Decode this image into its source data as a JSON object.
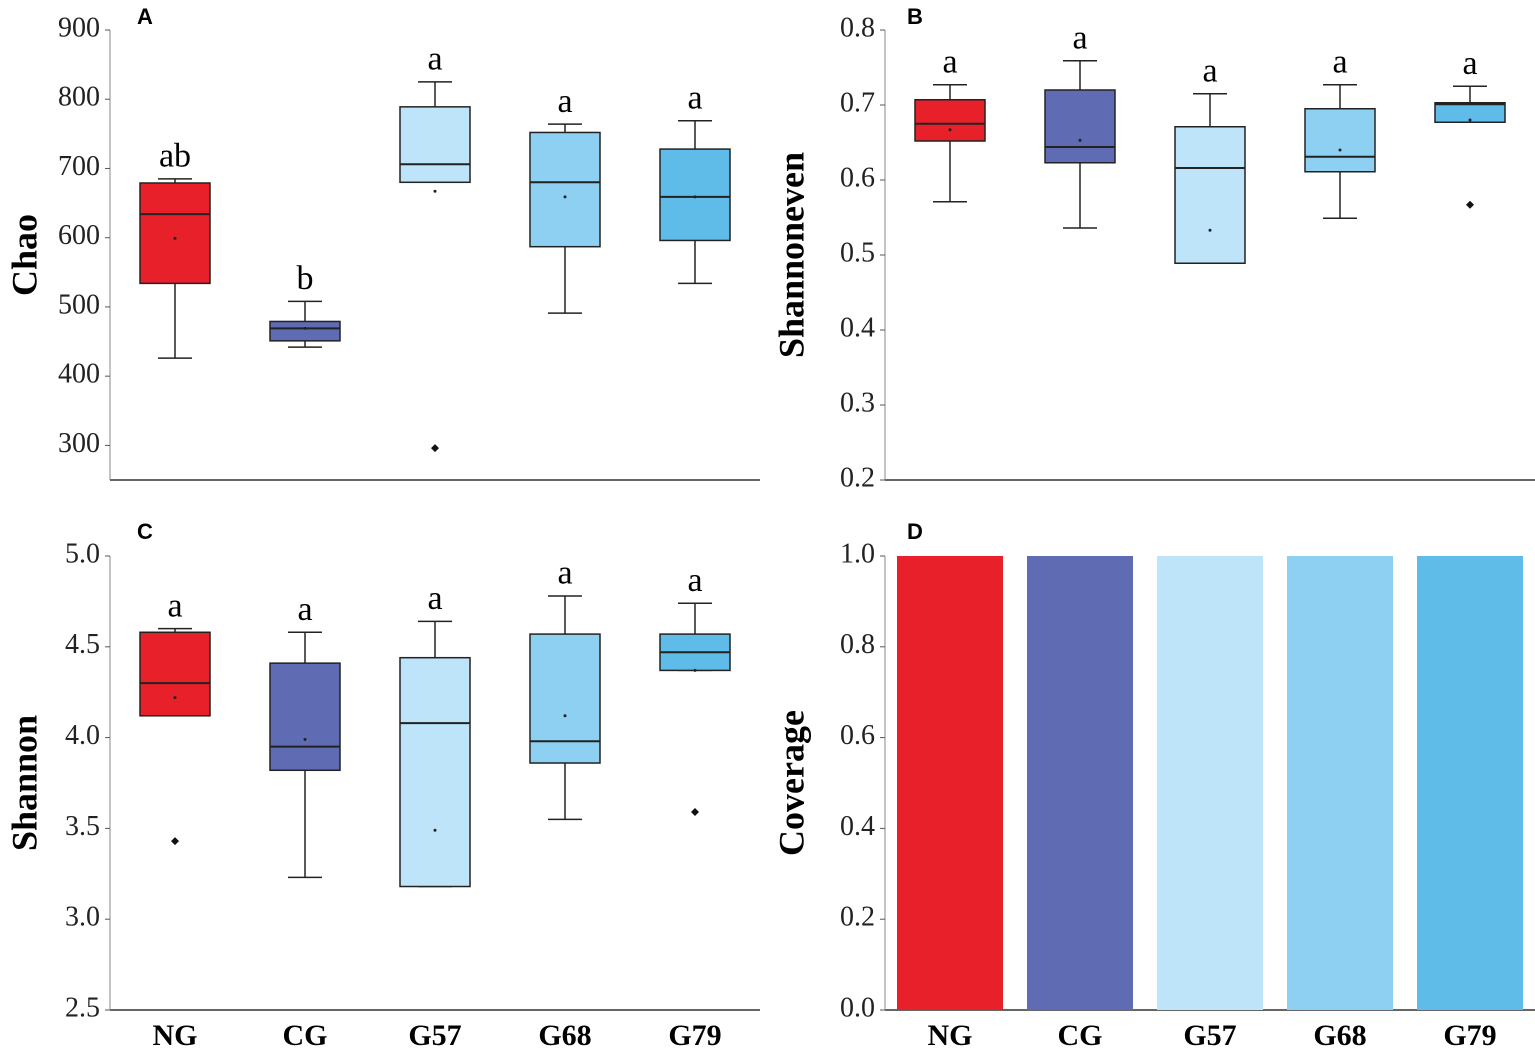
{
  "chart_data": [
    {
      "type": "box",
      "panel_label": "A",
      "y_label": "Chao",
      "ylim": [
        250,
        900
      ],
      "yticks": [
        300,
        400,
        500,
        600,
        700,
        800,
        900
      ],
      "boxes": [
        {
          "color": "#e8202a",
          "whisker_low": 426,
          "q1": 534,
          "median": 634,
          "q3": 679,
          "whisker_high": 685,
          "mean": 599,
          "letter": "ab"
        },
        {
          "color": "#5f6cb3",
          "whisker_low": 442,
          "q1": 451,
          "median": 469,
          "q3": 479,
          "whisker_high": 508,
          "mean": 469,
          "letter": "b"
        },
        {
          "color": "#bde4f8",
          "whisker_low": 680,
          "q1": 680,
          "median": 706,
          "q3": 789,
          "whisker_high": 825,
          "mean": 667,
          "outliers": [
            296
          ],
          "letter": "a"
        },
        {
          "color": "#8dd0f2",
          "whisker_low": 491,
          "q1": 587,
          "median": 680,
          "q3": 752,
          "whisker_high": 764,
          "mean": 659,
          "letter": "a"
        },
        {
          "color": "#5fbce9",
          "whisker_low": 534,
          "q1": 596,
          "median": 659,
          "q3": 728,
          "whisker_high": 769,
          "mean": 659,
          "letter": "a"
        }
      ]
    },
    {
      "type": "box",
      "panel_label": "B",
      "y_label": "Shannoneven",
      "ylim": [
        0.2,
        0.8
      ],
      "yticks": [
        0.2,
        0.3,
        0.4,
        0.5,
        0.6,
        0.7,
        0.8
      ],
      "boxes": [
        {
          "color": "#e8202a",
          "whisker_low": 0.571,
          "q1": 0.652,
          "median": 0.675,
          "q3": 0.707,
          "whisker_high": 0.727,
          "mean": 0.667,
          "letter": "a"
        },
        {
          "color": "#5f6cb3",
          "whisker_low": 0.536,
          "q1": 0.623,
          "median": 0.644,
          "q3": 0.72,
          "whisker_high": 0.759,
          "mean": 0.653,
          "letter": "a"
        },
        {
          "color": "#bde4f8",
          "whisker_low": 0.489,
          "q1": 0.489,
          "median": 0.616,
          "q3": 0.671,
          "whisker_high": 0.715,
          "mean": 0.533,
          "letter": "a"
        },
        {
          "color": "#8dd0f2",
          "whisker_low": 0.549,
          "q1": 0.611,
          "median": 0.631,
          "q3": 0.695,
          "whisker_high": 0.727,
          "mean": 0.64,
          "letter": "a"
        },
        {
          "color": "#5fbce9",
          "whisker_low": 0.677,
          "q1": 0.677,
          "median": 0.701,
          "q3": 0.703,
          "whisker_high": 0.725,
          "mean": 0.68,
          "outliers": [
            0.567
          ],
          "letter": "a"
        }
      ]
    },
    {
      "type": "box",
      "panel_label": "C",
      "y_label": "Shannon",
      "ylim": [
        2.5,
        5.0
      ],
      "yticks": [
        2.5,
        {
          "value": 3,
          "label": "3.0"
        },
        3.5,
        {
          "value": 4,
          "label": "4.0"
        },
        4.5,
        {
          "value": 5,
          "label": "5.0"
        }
      ],
      "categories": [
        "NG",
        "CG",
        "G57",
        "G68",
        "G79"
      ],
      "boxes": [
        {
          "color": "#e8202a",
          "whisker_low": 4.12,
          "q1": 4.12,
          "median": 4.3,
          "q3": 4.58,
          "whisker_high": 4.6,
          "mean": 4.22,
          "outliers": [
            3.43
          ],
          "letter": "a"
        },
        {
          "color": "#5f6cb3",
          "whisker_low": 3.23,
          "q1": 3.82,
          "median": 3.95,
          "q3": 4.41,
          "whisker_high": 4.58,
          "mean": 3.99,
          "letter": "a"
        },
        {
          "color": "#bde4f8",
          "whisker_low": 3.18,
          "q1": 3.18,
          "median": 4.08,
          "q3": 4.44,
          "whisker_high": 4.64,
          "mean": 3.49,
          "letter": "a"
        },
        {
          "color": "#8dd0f2",
          "whisker_low": 3.55,
          "q1": 3.86,
          "median": 3.98,
          "q3": 4.57,
          "whisker_high": 4.78,
          "mean": 4.12,
          "letter": "a"
        },
        {
          "color": "#5fbce9",
          "whisker_low": 4.37,
          "q1": 4.37,
          "median": 4.47,
          "q3": 4.57,
          "whisker_high": 4.74,
          "mean": 4.37,
          "outliers": [
            3.59
          ],
          "letter": "a"
        }
      ]
    },
    {
      "type": "bar",
      "panel_label": "D",
      "y_label": "Coverage",
      "ylim": [
        0,
        1.0
      ],
      "yticks": [
        {
          "value": 0,
          "label": "0.0"
        },
        0.2,
        0.4,
        0.6,
        0.8,
        {
          "value": 1,
          "label": "1.0"
        }
      ],
      "categories": [
        "NG",
        "CG",
        "G57",
        "G68",
        "G79"
      ],
      "values": [
        1,
        1,
        1,
        1,
        1
      ],
      "colors": [
        "#e8202a",
        "#5f6cb3",
        "#bde4f8",
        "#8dd0f2",
        "#5fbce9"
      ]
    }
  ]
}
